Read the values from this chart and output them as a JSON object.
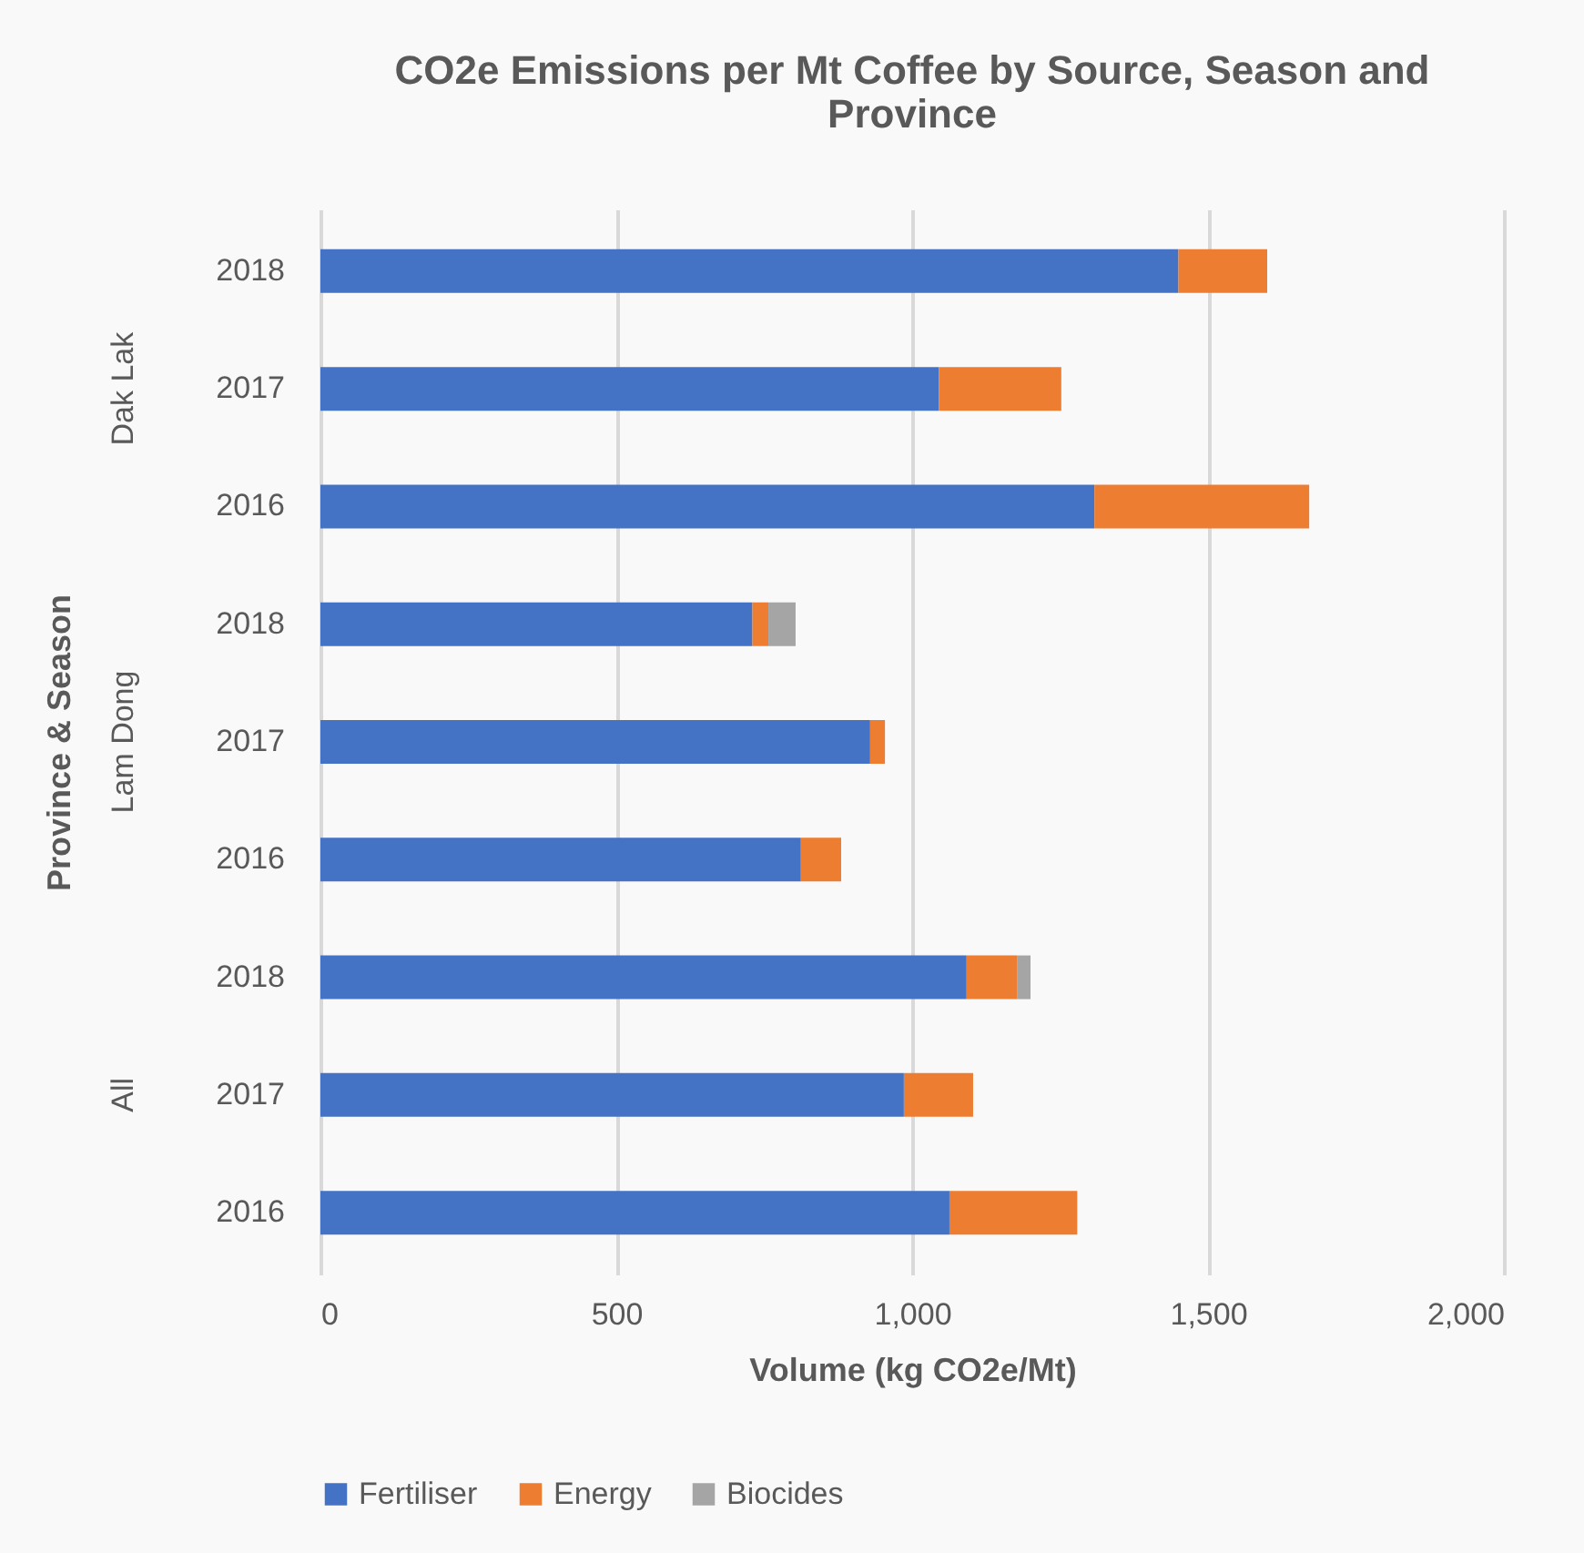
{
  "chart_data": {
    "type": "bar",
    "orientation": "horizontal",
    "stacked": true,
    "title": "CO2e Emissions per Mt Coffee by Source, Season and Province",
    "xlabel": "Volume (kg CO2e/Mt)",
    "ylabel": "Province & Season",
    "annotations": [
      "Dak Lak",
      "Lam Dong",
      "All"
    ],
    "categories": [
      "2018",
      "2017",
      "2016",
      "2018",
      "2017",
      "2016",
      "2018",
      "2017",
      "2016"
    ],
    "series": [
      {
        "name": "Fertiliser",
        "color": "#4472c4",
        "values": [
          1450,
          1045,
          1308,
          730,
          929,
          812,
          1092,
          986,
          1063
        ]
      },
      {
        "name": "Energy",
        "color": "#ed7d31",
        "values": [
          150,
          207,
          363,
          27,
          25,
          68,
          86,
          117,
          216
        ]
      },
      {
        "name": "Biocides",
        "color": "#a5a5a5",
        "values": [
          null,
          null,
          null,
          46,
          null,
          null,
          22,
          null,
          null
        ]
      }
    ],
    "xlim": [
      0,
      2000
    ],
    "xticks": [
      0,
      500,
      {
        "value": 1000,
        "label": "1,000"
      },
      {
        "value": 1500,
        "label": "1,500"
      },
      {
        "value": 2000,
        "label": "2,000"
      }
    ],
    "grid": "x",
    "legend": "bottom"
  }
}
